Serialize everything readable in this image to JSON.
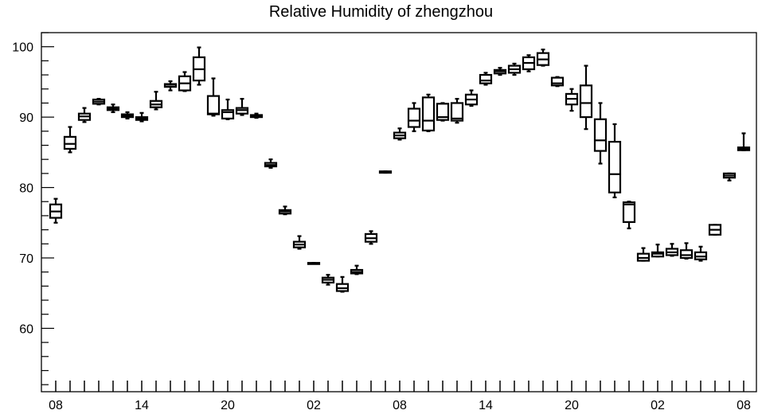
{
  "chart_data": {
    "type": "boxplot",
    "title": "Relative Humidity of zhengzhou",
    "xlabel": "",
    "ylabel": "",
    "ylim": [
      51,
      102
    ],
    "y_ticks": [
      60,
      70,
      80,
      90,
      100
    ],
    "x_tick_labels": [
      "08",
      "14",
      "20",
      "02",
      "08",
      "14",
      "20",
      "02",
      "08"
    ],
    "x_tick_positions": [
      0,
      6,
      12,
      18,
      24,
      30,
      36,
      42,
      48
    ],
    "grid": false,
    "boxes": [
      {
        "x": 0,
        "min": 75.0,
        "q1": 75.7,
        "median": 76.6,
        "q3": 77.6,
        "max": 78.4
      },
      {
        "x": 1,
        "min": 85.0,
        "q1": 85.5,
        "median": 86.2,
        "q3": 87.2,
        "max": 88.6
      },
      {
        "x": 2,
        "min": 89.3,
        "q1": 89.6,
        "median": 90.1,
        "q3": 90.5,
        "max": 91.3
      },
      {
        "x": 3,
        "min": 91.8,
        "q1": 91.9,
        "median": 92.2,
        "q3": 92.5,
        "max": 92.6
      },
      {
        "x": 4,
        "min": 90.7,
        "q1": 91.0,
        "median": 91.2,
        "q3": 91.4,
        "max": 91.8
      },
      {
        "x": 5,
        "min": 89.8,
        "q1": 90.0,
        "median": 90.2,
        "q3": 90.4,
        "max": 90.7
      },
      {
        "x": 6,
        "min": 89.4,
        "q1": 89.6,
        "median": 89.8,
        "q3": 90.0,
        "max": 90.6
      },
      {
        "x": 7,
        "min": 91.1,
        "q1": 91.4,
        "median": 91.8,
        "q3": 92.3,
        "max": 93.6
      },
      {
        "x": 8,
        "min": 93.8,
        "q1": 94.3,
        "median": 94.6,
        "q3": 94.7,
        "max": 95.1
      },
      {
        "x": 9,
        "min": 93.7,
        "q1": 93.8,
        "median": 94.8,
        "q3": 95.8,
        "max": 96.4
      },
      {
        "x": 10,
        "min": 94.6,
        "q1": 95.2,
        "median": 96.8,
        "q3": 98.5,
        "max": 99.9
      },
      {
        "x": 11,
        "min": 90.2,
        "q1": 90.4,
        "median": 90.5,
        "q3": 93.0,
        "max": 95.5
      },
      {
        "x": 12,
        "min": 89.7,
        "q1": 89.8,
        "median": 90.7,
        "q3": 91.0,
        "max": 92.5
      },
      {
        "x": 13,
        "min": 90.3,
        "q1": 90.5,
        "median": 91.0,
        "q3": 91.3,
        "max": 92.6
      },
      {
        "x": 14,
        "min": 89.9,
        "q1": 90.0,
        "median": 90.1,
        "q3": 90.3,
        "max": 90.5
      },
      {
        "x": 15,
        "min": 82.8,
        "q1": 83.0,
        "median": 83.2,
        "q3": 83.5,
        "max": 84.0
      },
      {
        "x": 16,
        "min": 76.2,
        "q1": 76.3,
        "median": 76.6,
        "q3": 76.8,
        "max": 77.3
      },
      {
        "x": 17,
        "min": 71.3,
        "q1": 71.5,
        "median": 71.9,
        "q3": 72.3,
        "max": 73.1
      },
      {
        "x": 18,
        "min": 69.2,
        "q1": 69.2,
        "median": 69.2,
        "q3": 69.3,
        "max": 69.3
      },
      {
        "x": 19,
        "min": 66.2,
        "q1": 66.5,
        "median": 66.9,
        "q3": 67.2,
        "max": 67.6
      },
      {
        "x": 20,
        "min": 65.2,
        "q1": 65.3,
        "median": 65.7,
        "q3": 66.3,
        "max": 67.3
      },
      {
        "x": 21,
        "min": 67.7,
        "q1": 67.8,
        "median": 68.0,
        "q3": 68.3,
        "max": 68.9
      },
      {
        "x": 22,
        "min": 72.0,
        "q1": 72.3,
        "median": 72.8,
        "q3": 73.4,
        "max": 73.8
      },
      {
        "x": 23,
        "min": 82.1,
        "q1": 82.1,
        "median": 82.2,
        "q3": 82.3,
        "max": 82.3
      },
      {
        "x": 24,
        "min": 86.8,
        "q1": 87.0,
        "median": 87.4,
        "q3": 87.8,
        "max": 88.4
      },
      {
        "x": 25,
        "min": 88.0,
        "q1": 88.6,
        "median": 89.5,
        "q3": 91.2,
        "max": 92.0
      },
      {
        "x": 26,
        "min": 88.0,
        "q1": 88.1,
        "median": 89.5,
        "q3": 92.8,
        "max": 93.2
      },
      {
        "x": 27,
        "min": 89.5,
        "q1": 89.6,
        "median": 90.0,
        "q3": 91.9,
        "max": 92.0
      },
      {
        "x": 28,
        "min": 89.2,
        "q1": 89.5,
        "median": 89.8,
        "q3": 92.0,
        "max": 92.6
      },
      {
        "x": 29,
        "min": 91.6,
        "q1": 91.8,
        "median": 92.5,
        "q3": 93.2,
        "max": 93.8
      },
      {
        "x": 30,
        "min": 94.6,
        "q1": 94.8,
        "median": 95.2,
        "q3": 96.0,
        "max": 96.3
      },
      {
        "x": 31,
        "min": 96.0,
        "q1": 96.2,
        "median": 96.5,
        "q3": 96.7,
        "max": 97.0
      },
      {
        "x": 32,
        "min": 96.0,
        "q1": 96.3,
        "median": 96.8,
        "q3": 97.3,
        "max": 97.6
      },
      {
        "x": 33,
        "min": 96.5,
        "q1": 96.8,
        "median": 97.7,
        "q3": 98.5,
        "max": 98.8
      },
      {
        "x": 34,
        "min": 97.3,
        "q1": 97.4,
        "median": 98.2,
        "q3": 99.1,
        "max": 99.6
      },
      {
        "x": 35,
        "min": 94.4,
        "q1": 94.5,
        "median": 94.8,
        "q3": 95.6,
        "max": 95.7
      },
      {
        "x": 36,
        "min": 90.9,
        "q1": 91.8,
        "median": 92.6,
        "q3": 93.3,
        "max": 94.0
      },
      {
        "x": 37,
        "min": 88.3,
        "q1": 90.0,
        "median": 92.0,
        "q3": 94.5,
        "max": 97.3
      },
      {
        "x": 38,
        "min": 83.4,
        "q1": 85.2,
        "median": 86.7,
        "q3": 89.7,
        "max": 92.0
      },
      {
        "x": 39,
        "min": 78.6,
        "q1": 79.3,
        "median": 81.9,
        "q3": 86.5,
        "max": 89.0
      },
      {
        "x": 40,
        "min": 74.2,
        "q1": 75.1,
        "median": 77.6,
        "q3": 77.9,
        "max": 78.0
      },
      {
        "x": 41,
        "min": 69.6,
        "q1": 69.6,
        "median": 70.0,
        "q3": 70.6,
        "max": 71.4
      },
      {
        "x": 42,
        "min": 70.2,
        "q1": 70.2,
        "median": 70.6,
        "q3": 70.8,
        "max": 71.9
      },
      {
        "x": 43,
        "min": 70.3,
        "q1": 70.4,
        "median": 70.8,
        "q3": 71.3,
        "max": 72.0
      },
      {
        "x": 44,
        "min": 69.9,
        "q1": 70.0,
        "median": 70.4,
        "q3": 71.1,
        "max": 72.1
      },
      {
        "x": 45,
        "min": 69.6,
        "q1": 69.8,
        "median": 70.2,
        "q3": 70.8,
        "max": 71.6
      },
      {
        "x": 46,
        "min": 73.3,
        "q1": 73.3,
        "median": 74.0,
        "q3": 74.7,
        "max": 74.7
      },
      {
        "x": 47,
        "min": 81.0,
        "q1": 81.4,
        "median": 81.7,
        "q3": 82.0,
        "max": 82.0
      },
      {
        "x": 48,
        "min": 85.3,
        "q1": 85.3,
        "median": 85.5,
        "q3": 85.7,
        "max": 87.7
      }
    ]
  }
}
